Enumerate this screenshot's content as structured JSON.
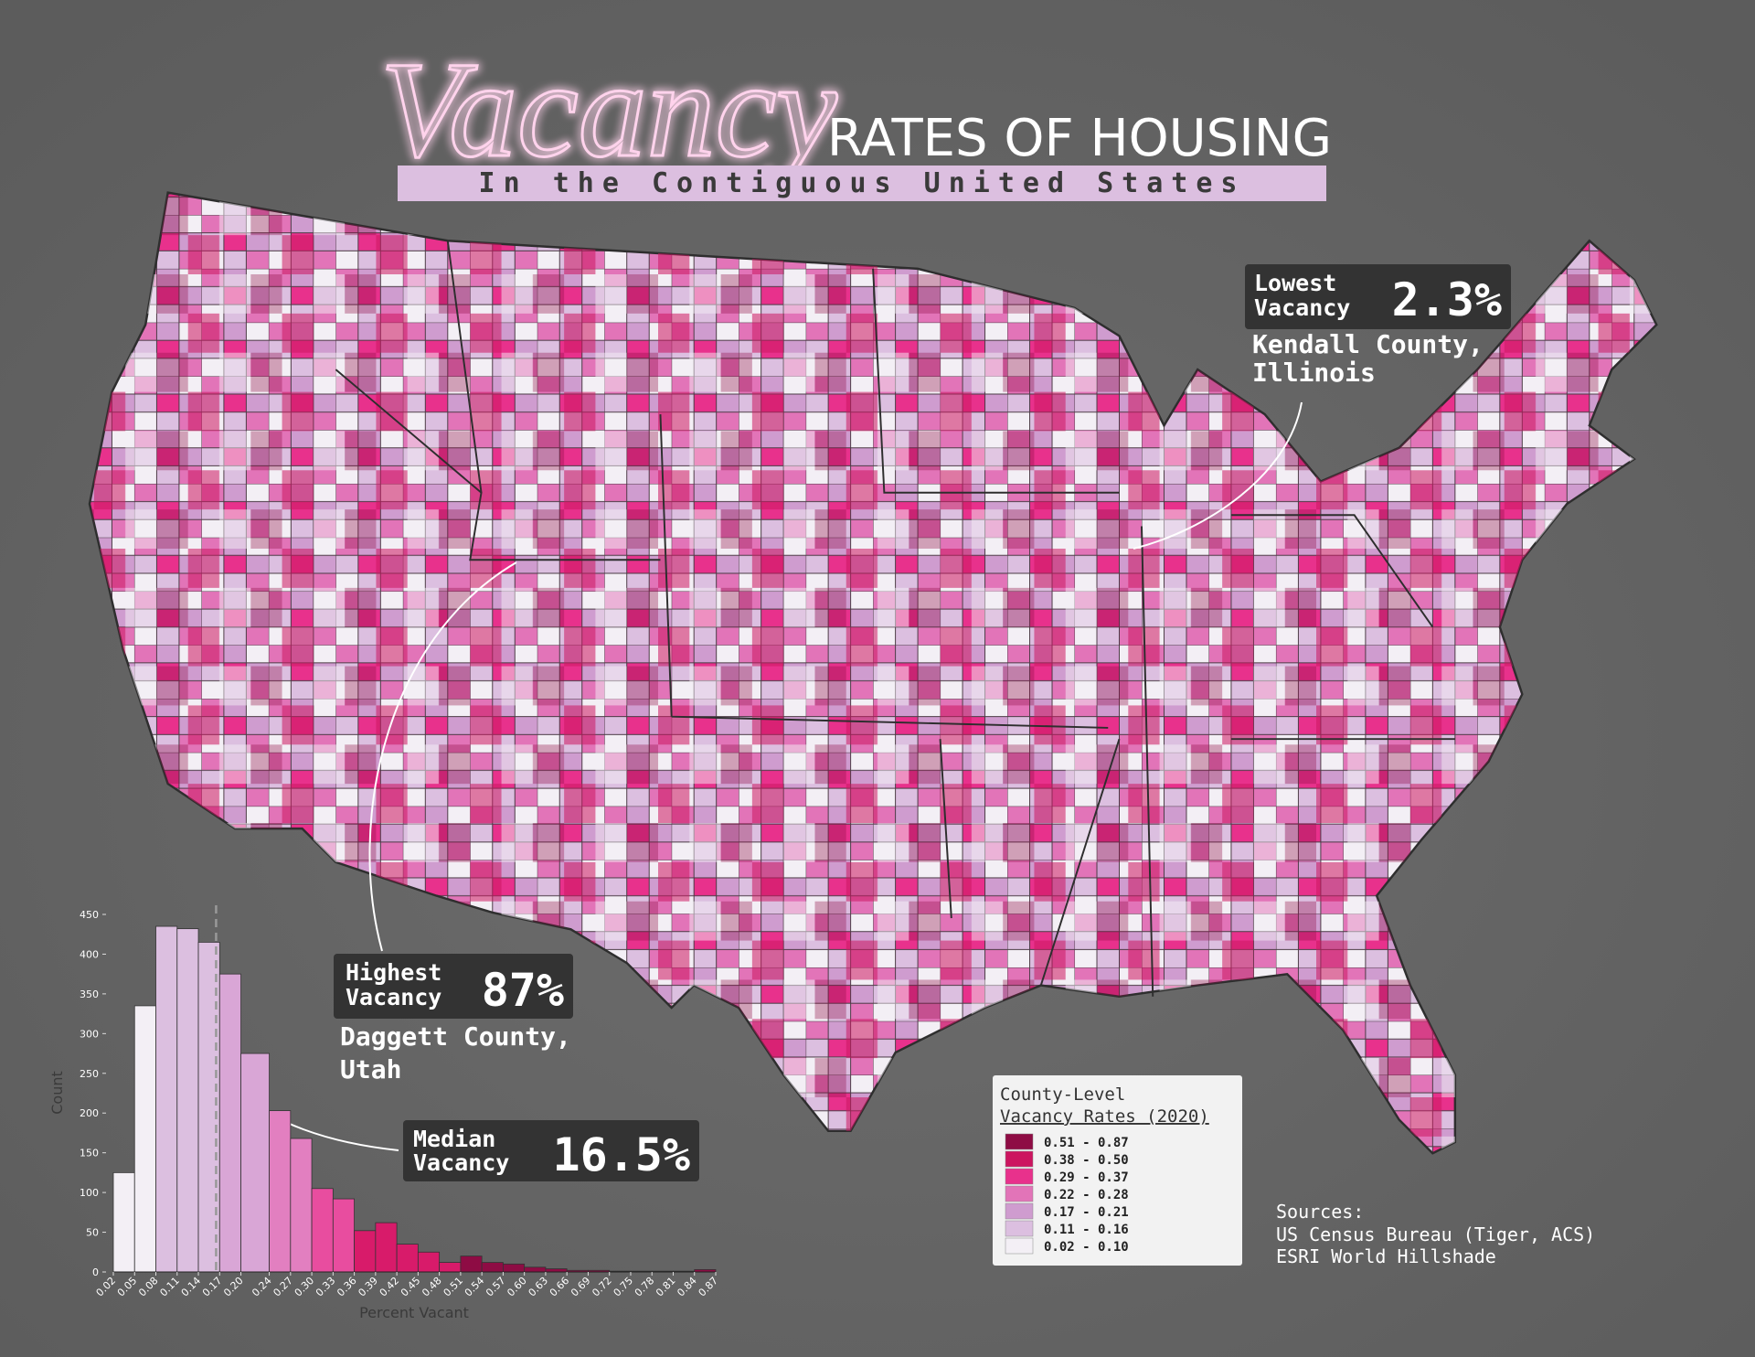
{
  "header": {
    "title_script": "Vacancy",
    "title": "RATES OF HOUSING",
    "subtitle": "In the Contiguous United States"
  },
  "annotations": [
    {
      "label": [
        "Lowest",
        "Vacancy"
      ],
      "value": "2.3%",
      "place": [
        "Kendall County,",
        "Illinois"
      ]
    },
    {
      "label": [
        "Highest",
        "Vacancy"
      ],
      "value": "87%",
      "place": [
        "Daggett County,",
        "Utah"
      ]
    },
    {
      "label": [
        "Median",
        "Vacancy"
      ],
      "value": "16.5%"
    }
  ],
  "legend": {
    "title": [
      "County-Level",
      "Vacancy Rates (2020)"
    ],
    "items": [
      {
        "label": "0.51 - 0.87",
        "color": "#8e0c44"
      },
      {
        "label": "0.38 - 0.50",
        "color": "#cc1560"
      },
      {
        "label": "0.29 - 0.37",
        "color": "#e8318c"
      },
      {
        "label": "0.22 - 0.28",
        "color": "#e274b8"
      },
      {
        "label": "0.17 - 0.21",
        "color": "#cf9ccf"
      },
      {
        "label": "0.11 - 0.16",
        "color": "#dcbfe0"
      },
      {
        "label": "0.02 - 0.10",
        "color": "#f3eff5"
      }
    ]
  },
  "sources": {
    "title": "Sources:",
    "lines": [
      "US Census Bureau (Tiger, ACS)",
      "ESRI World Hillshade"
    ]
  },
  "chart_data": {
    "type": "histogram",
    "xlabel": "Percent Vacant",
    "ylabel": "Count",
    "bins": [
      0.02,
      0.05,
      0.08,
      0.11,
      0.14,
      0.17,
      0.2,
      0.24,
      0.27,
      0.3,
      0.33,
      0.36,
      0.39,
      0.42,
      0.45,
      0.48,
      0.51,
      0.54,
      0.57,
      0.6,
      0.63,
      0.66,
      0.69,
      0.72,
      0.75,
      0.78,
      0.81,
      0.84,
      0.87
    ],
    "values": [
      125,
      335,
      435,
      432,
      415,
      375,
      275,
      203,
      168,
      105,
      92,
      52,
      62,
      35,
      25,
      12,
      20,
      12,
      10,
      6,
      4,
      2,
      2,
      1,
      1,
      1,
      1,
      3
    ],
    "colors": [
      "#f3eff5",
      "#f3eff5",
      "#dcbfe0",
      "#dcbfe0",
      "#dcbfe0",
      "#d9a6d6",
      "#d9a6d6",
      "#e27fc0",
      "#e27fc0",
      "#e84d9f",
      "#e84d9f",
      "#d81b6a",
      "#d81b6a",
      "#d81b6a",
      "#d81b6a",
      "#d81b6a",
      "#8e0c44",
      "#8e0c44",
      "#8e0c44",
      "#8e0c44",
      "#8e0c44",
      "#8e0c44",
      "#8e0c44",
      "#8e0c44",
      "#8e0c44",
      "#8e0c44",
      "#8e0c44",
      "#8e0c44"
    ],
    "xlim": [
      0.02,
      0.87
    ],
    "xticks": [
      0.02,
      0.05,
      0.08,
      0.11,
      0.14,
      0.17,
      {
        "value": 0.2,
        "label": "0.20"
      },
      0.24,
      0.27,
      {
        "value": 0.3,
        "label": "0.30"
      },
      0.33,
      0.36,
      0.39,
      0.42,
      0.45,
      0.48,
      0.51,
      0.54,
      0.57,
      {
        "value": 0.6,
        "label": "0.60"
      },
      0.63,
      0.66,
      0.69,
      0.72,
      0.75,
      0.78,
      0.81,
      0.84,
      0.87
    ],
    "ylim": [
      0,
      450
    ],
    "yticks": [
      0,
      50,
      100,
      150,
      200,
      250,
      300,
      350,
      400,
      450
    ],
    "median": 0.165
  }
}
